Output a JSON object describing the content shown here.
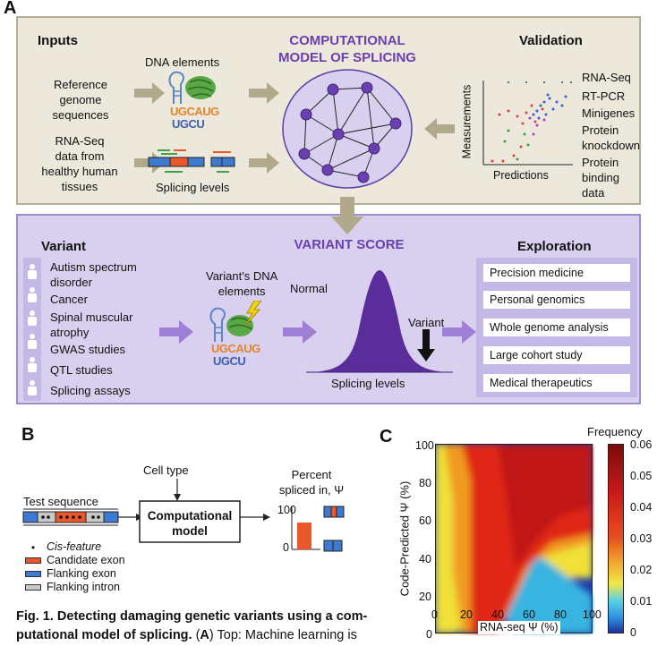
{
  "panelA": {
    "letter": "A",
    "inputs_title": "Inputs",
    "dna_elements": "DNA elements",
    "ref_genome": [
      "Reference",
      "genome",
      "sequences"
    ],
    "rnaseq_input": [
      "RNA-Seq",
      "data from",
      "healthy human",
      "tissues"
    ],
    "splicing_levels": "Splicing levels",
    "motif1": [
      "UGCAUG",
      "UGCU"
    ],
    "model_title": [
      "COMPUTATIONAL",
      "MODEL OF SPLICING"
    ],
    "validation_title": "Validation",
    "validation_ylabel": "Measurements",
    "validation_xlabel": "Predictions",
    "validation_items": [
      "RNA-Seq",
      "RT-PCR",
      "Minigenes",
      "Protein",
      "knockdown",
      "Protein",
      "binding",
      "data"
    ],
    "variant_title": "Variant",
    "variant_items": [
      "Autism spectrum",
      "disorder",
      "Cancer",
      "Spinal muscular",
      "atrophy",
      "GWAS studies",
      "QTL studies",
      "Splicing assays"
    ],
    "variant_dna": [
      "Variant's DNA",
      "elements"
    ],
    "variant_score": "VARIANT SCORE",
    "normal": "Normal",
    "variant_label": "Variant",
    "splicing_levels2": "Splicing levels",
    "exploration_title": "Exploration",
    "exploration_items": [
      "Precision medicine",
      "Personal genomics",
      "Whole genome analysis",
      "Large cohort study",
      "Medical therapeutics"
    ]
  },
  "panelB": {
    "letter": "B",
    "test_sequence": "Test sequence",
    "cell_type": "Cell type",
    "model": [
      "Computational",
      "model"
    ],
    "percent": [
      "Percent",
      "spliced in, Ψ"
    ],
    "y100": "100",
    "y0": "0",
    "legend": [
      "Cis-feature",
      "Candidate exon",
      "Flanking exon",
      "Flanking intron"
    ],
    "colors": {
      "candidate": "#e8582a",
      "flanking_exon": "#3d7ad0",
      "flanking_intron": "#c8c8c8"
    }
  },
  "panelC": {
    "letter": "C",
    "colorbar_title": "Frequency",
    "ylabel": "Code-Predicted Ψ (%)",
    "xlabel": "RNA-seq Ψ (%)",
    "xticks": [
      "0",
      "20",
      "40",
      "60",
      "80",
      "100"
    ],
    "yticks": [
      "100",
      "80",
      "60",
      "40",
      "20",
      "0"
    ],
    "cbticks": [
      "0.06",
      "0.05",
      "0.04",
      "0.03",
      "0.02",
      "0.01",
      "0"
    ]
  },
  "caption": {
    "line1": "Fig. 1. Detecting damaging genetic variants using a com-",
    "line2a": "putational model of splicing.",
    "line2b": " (",
    "line2c": "A",
    "line2d": ") Top: Machine learning is"
  },
  "chart_data": {
    "type": "heatmap",
    "title": "",
    "xlabel": "RNA-seq Ψ (%)",
    "ylabel": "Code-Predicted Ψ (%)",
    "xlim": [
      0,
      100
    ],
    "ylim": [
      0,
      100
    ],
    "colorbar": {
      "title": "Frequency",
      "range": [
        0,
        0.06
      ]
    },
    "grid": false
  }
}
